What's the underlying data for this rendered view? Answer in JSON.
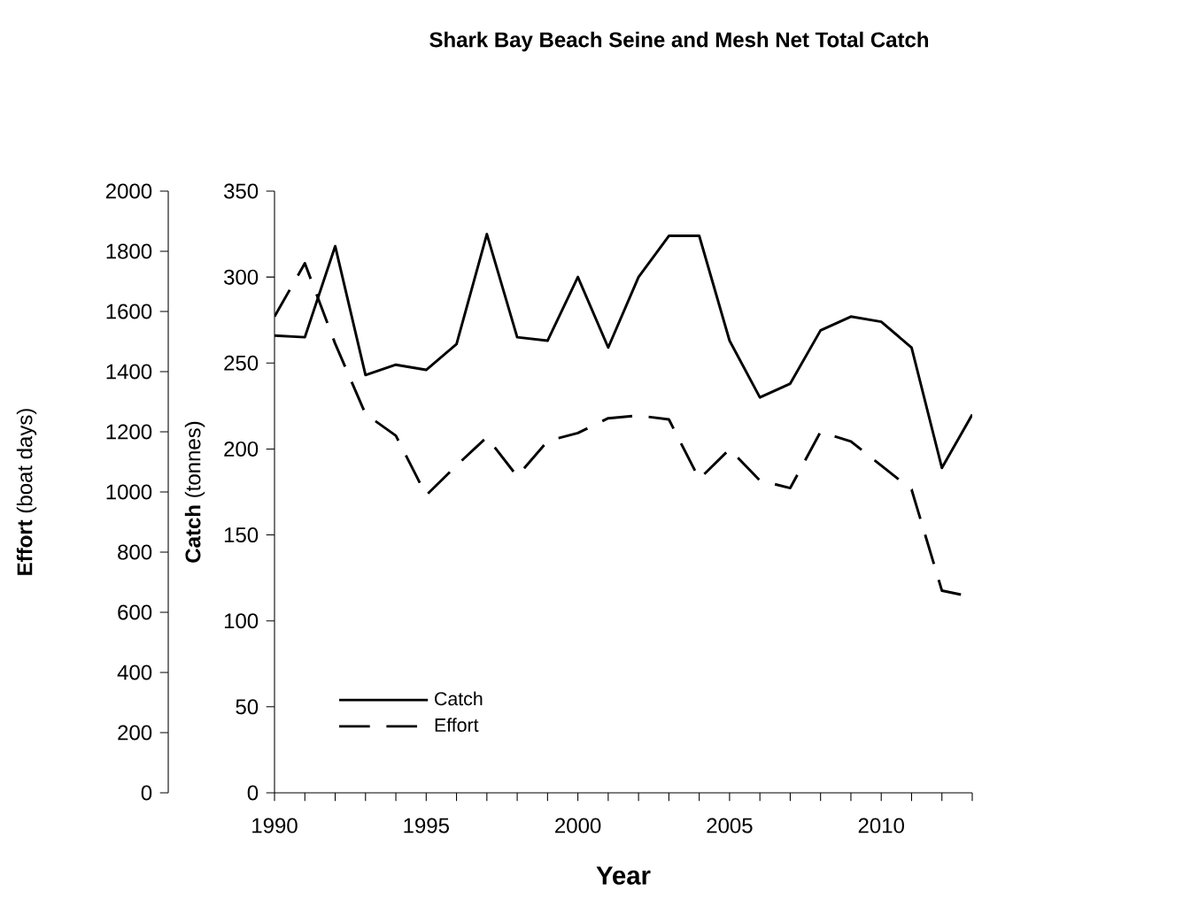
{
  "chart_data": {
    "type": "line",
    "title": "Shark Bay Beach Seine and Mesh Net Total Catch",
    "xlabel": "Year",
    "ylabel": "**Catch** (tonnes)",
    "y2label": "**Effort** (boat days)",
    "x": [
      1990,
      1991,
      1992,
      1993,
      1994,
      1995,
      1996,
      1997,
      1998,
      1999,
      2000,
      2001,
      2002,
      2003,
      2004,
      2005,
      2006,
      2007,
      2008,
      2009,
      2010,
      2011,
      2012,
      2013
    ],
    "xlim": [
      1990,
      2013
    ],
    "xticks": [
      1990,
      {
        "value": 1991,
        "label": null
      },
      {
        "value": 1992,
        "label": null
      },
      {
        "value": 1993,
        "label": null
      },
      {
        "value": 1994,
        "label": null
      },
      1995,
      {
        "value": 1996,
        "label": null
      },
      {
        "value": 1997,
        "label": null
      },
      {
        "value": 1998,
        "label": null
      },
      {
        "value": 1999,
        "label": null
      },
      2000,
      {
        "value": 2001,
        "label": null
      },
      {
        "value": 2002,
        "label": null
      },
      {
        "value": 2003,
        "label": null
      },
      {
        "value": 2004,
        "label": null
      },
      2005,
      {
        "value": 2006,
        "label": null
      },
      {
        "value": 2007,
        "label": null
      },
      {
        "value": 2008,
        "label": null
      },
      {
        "value": 2009,
        "label": null
      },
      2010,
      {
        "value": 2011,
        "label": null
      },
      {
        "value": 2012,
        "label": null
      },
      {
        "value": 2013,
        "label": null
      }
    ],
    "ylim": [
      0,
      350
    ],
    "yticks": [
      0,
      50,
      100,
      150,
      200,
      250,
      300,
      350
    ],
    "y2lim": [
      0,
      2000
    ],
    "y2ticks": [
      0,
      200,
      400,
      600,
      800,
      1000,
      1200,
      1400,
      1600,
      1800,
      2000
    ],
    "legend": "bottom left",
    "grid": false,
    "marker": "none",
    "series": [
      {
        "name": "Catch",
        "color": "#000000",
        "line_style": "solid",
        "axis": "y",
        "values": [
          266,
          265,
          318,
          243,
          249,
          246,
          261,
          325,
          265,
          263,
          300,
          259,
          300,
          324,
          324,
          263,
          230,
          238,
          269,
          277,
          274,
          259,
          189,
          220
        ]
      },
      {
        "name": "Effort",
        "color": "#000000",
        "line_style": "dashed",
        "axis": "y2",
        "values": [
          1583,
          1760,
          1493,
          1259,
          1187,
          989,
          1088,
          1182,
          1052,
          1169,
          1196,
          1245,
          1254,
          1241,
          1043,
          1142,
          1038,
          1013,
          1200,
          1168,
          1088,
          1008,
          672,
          651
        ]
      }
    ]
  }
}
